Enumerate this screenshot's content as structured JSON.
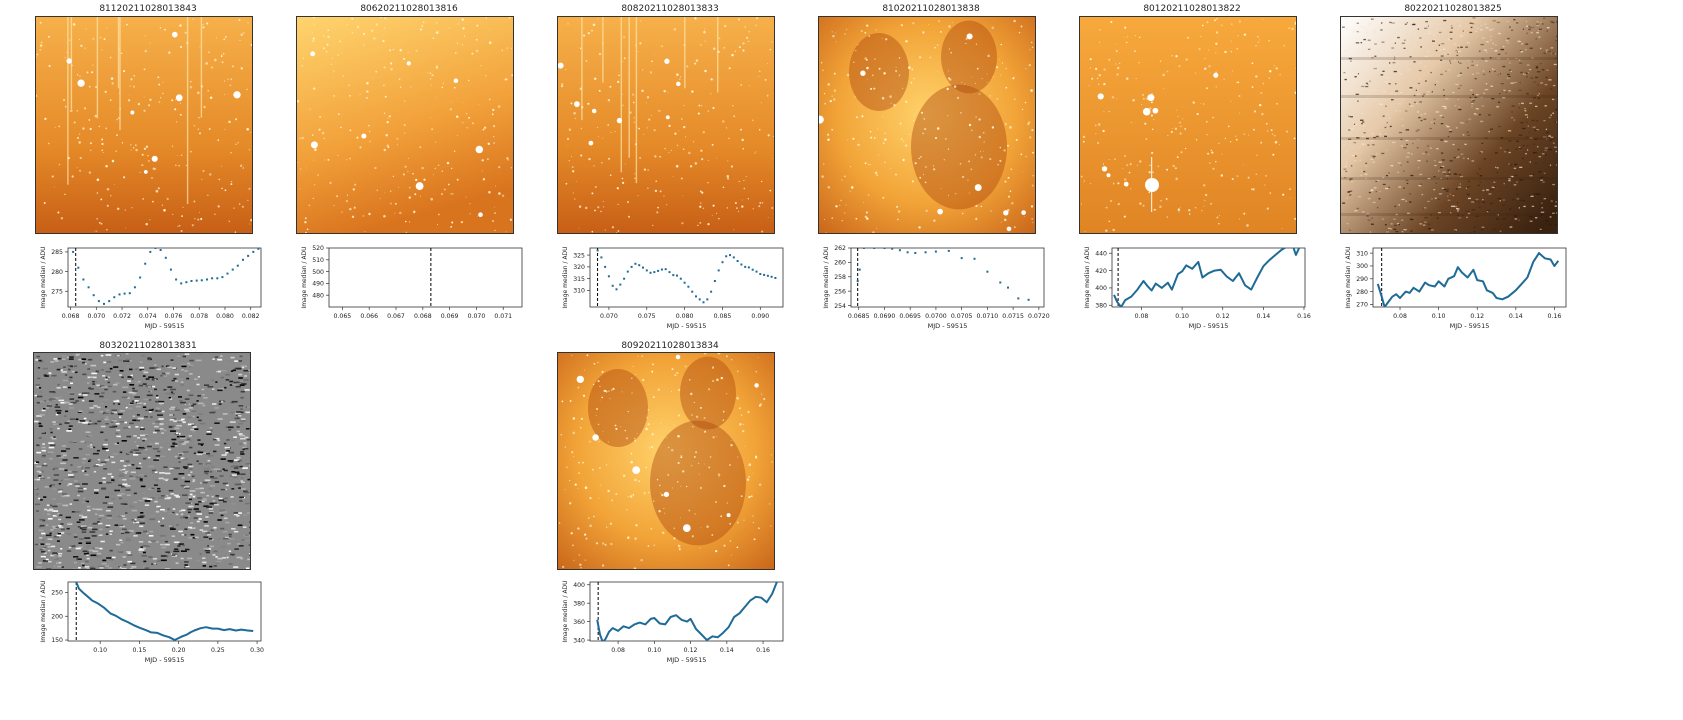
{
  "panels": [
    {
      "id": "8112",
      "title": "81120211028013843",
      "image_style": "orange-streaks",
      "chart_data": {
        "type": "line",
        "mode": "points",
        "xlabel": "MJD - 59515",
        "ylabel": "Image median / ADU",
        "xlim": [
          0.0678,
          0.0828
        ],
        "ylim": [
          271,
          286
        ],
        "xticks": [
          0.068,
          0.07,
          0.072,
          0.074,
          0.076,
          0.078,
          0.08,
          0.082
        ],
        "xtick_labels": [
          "0.068",
          "0.070",
          "0.072",
          "0.074",
          "0.076",
          "0.078",
          "0.080",
          "0.082"
        ],
        "yticks": [
          275,
          280,
          285
        ],
        "ytick_labels": [
          "275",
          "280",
          "285"
        ],
        "marker_x": 0.0684,
        "x": [
          0.0682,
          0.0686,
          0.069,
          0.0694,
          0.0698,
          0.0702,
          0.0706,
          0.071,
          0.0714,
          0.0718,
          0.0722,
          0.0726,
          0.073,
          0.0734,
          0.0738,
          0.0742,
          0.0746,
          0.075,
          0.0754,
          0.0758,
          0.0762,
          0.0766,
          0.077,
          0.0774,
          0.0778,
          0.0782,
          0.0786,
          0.079,
          0.0794,
          0.0798,
          0.0802,
          0.0806,
          0.081,
          0.0814,
          0.0818,
          0.0822,
          0.0826
        ],
        "y": [
          285,
          281,
          278,
          276,
          274,
          272.5,
          271.8,
          272.5,
          273.5,
          274.2,
          274.4,
          274.5,
          276,
          278.5,
          282,
          285,
          286,
          285.5,
          283.5,
          280.5,
          278,
          277,
          277.3,
          277.6,
          277.7,
          277.8,
          278,
          278.3,
          278.3,
          278.6,
          279.5,
          280.5,
          281.5,
          283,
          284,
          285,
          285.8
        ]
      }
    },
    {
      "id": "8062",
      "title": "80620211028013816",
      "image_style": "orange-smooth",
      "chart_data": {
        "type": "line",
        "mode": "points",
        "xlabel": "",
        "ylabel": "Image median / ADU",
        "xlim": [
          0.0645,
          0.0717
        ],
        "ylim": [
          470,
          520
        ],
        "xticks": [
          0.065,
          0.066,
          0.067,
          0.068,
          0.069,
          0.07,
          0.071
        ],
        "xtick_labels": [
          "0.065",
          "0.066",
          "0.067",
          "0.068",
          "0.069",
          "0.070",
          "0.071"
        ],
        "yticks": [
          480,
          490,
          500,
          510,
          520
        ],
        "ytick_labels": [
          "480",
          "490",
          "500",
          "510",
          "520"
        ],
        "marker_x": 0.0683,
        "x": [],
        "y": []
      }
    },
    {
      "id": "8082",
      "title": "80820211028013833",
      "image_style": "orange-streaks",
      "chart_data": {
        "type": "line",
        "mode": "points",
        "xlabel": "MJD - 59515",
        "ylabel": "Image median / ADU",
        "xlim": [
          0.0675,
          0.093
        ],
        "ylim": [
          303,
          328
        ],
        "xticks": [
          0.07,
          0.075,
          0.08,
          0.085,
          0.09
        ],
        "xtick_labels": [
          "0.070",
          "0.075",
          "0.080",
          "0.085",
          "0.090"
        ],
        "yticks": [
          310,
          315,
          320,
          325
        ],
        "ytick_labels": [
          "310",
          "315",
          "320",
          "325"
        ],
        "marker_x": 0.0685,
        "x": [
          0.0685,
          0.069,
          0.0695,
          0.07,
          0.0705,
          0.071,
          0.0715,
          0.072,
          0.0725,
          0.073,
          0.0735,
          0.074,
          0.0745,
          0.075,
          0.0755,
          0.076,
          0.0765,
          0.077,
          0.0775,
          0.078,
          0.0785,
          0.079,
          0.0795,
          0.08,
          0.0805,
          0.081,
          0.0815,
          0.082,
          0.0825,
          0.083,
          0.0835,
          0.084,
          0.0845,
          0.085,
          0.0855,
          0.086,
          0.0865,
          0.087,
          0.0875,
          0.088,
          0.0885,
          0.089,
          0.0895,
          0.09,
          0.0905,
          0.091,
          0.0915,
          0.092
        ],
        "y": [
          327,
          324,
          320,
          316,
          312,
          310.5,
          312.5,
          315,
          318,
          320,
          321.3,
          320.7,
          319.7,
          318.5,
          317.5,
          317.8,
          318.3,
          318.9,
          319,
          317.8,
          316.5,
          316.3,
          315,
          313.3,
          311.6,
          309.5,
          307.5,
          306.2,
          305,
          306.2,
          309.5,
          314,
          318.5,
          322,
          324.5,
          325,
          324,
          322.5,
          321,
          320,
          319.8,
          318.8,
          318,
          317,
          316.6,
          316.2,
          315.8,
          315.3
        ]
      }
    },
    {
      "id": "8102",
      "title": "81020211028013838",
      "image_style": "orange-nebula",
      "chart_data": {
        "type": "line",
        "mode": "points",
        "xlabel": "MJD - 59515",
        "ylabel": "Image median / ADU",
        "xlim": [
          0.06835,
          0.0721
        ],
        "ylim": [
          253.8,
          262
        ],
        "xticks": [
          0.0685,
          0.069,
          0.0695,
          0.07,
          0.0705,
          0.071,
          0.0715,
          0.072
        ],
        "xtick_labels": [
          "0.0685",
          "0.0690",
          "0.0695",
          "0.0700",
          "0.0705",
          "0.0710",
          "0.0715",
          "0.0720"
        ],
        "yticks": [
          254,
          256,
          258,
          260,
          262
        ],
        "ytick_labels": [
          "254",
          "256",
          "258",
          "260",
          "262"
        ],
        "marker_x": 0.06848,
        "x": [
          0.06848,
          0.06852,
          0.0686,
          0.0688,
          0.069,
          0.06915,
          0.0693,
          0.06945,
          0.0696,
          0.0698,
          0.07,
          0.07025,
          0.0705,
          0.07075,
          0.071,
          0.07125,
          0.0714,
          0.0716,
          0.0718
        ],
        "y": [
          257.4,
          259,
          262,
          262,
          262,
          261.9,
          261.7,
          261.4,
          261.3,
          261.4,
          261.5,
          261.6,
          260.6,
          260.5,
          258.7,
          257.2,
          256.5,
          255,
          254.8
        ]
      }
    },
    {
      "id": "8012",
      "title": "80120211028013822",
      "image_style": "orange-flat",
      "chart_data": {
        "type": "line",
        "mode": "line",
        "xlabel": "MJD - 59515",
        "ylabel": "Image median / ADU",
        "xlim": [
          0.0655,
          0.1605
        ],
        "ylim": [
          378,
          446
        ],
        "xticks": [
          0.08,
          0.1,
          0.12,
          0.14,
          0.16
        ],
        "xtick_labels": [
          "0.08",
          "0.10",
          "0.12",
          "0.14",
          "0.16"
        ],
        "yticks": [
          380,
          400,
          420,
          440
        ],
        "ytick_labels": [
          "380",
          "400",
          "420",
          "440"
        ],
        "marker_x": 0.0685,
        "x": [
          0.0665,
          0.068,
          0.07,
          0.072,
          0.075,
          0.078,
          0.081,
          0.083,
          0.085,
          0.087,
          0.09,
          0.093,
          0.095,
          0.098,
          0.1,
          0.102,
          0.105,
          0.108,
          0.11,
          0.113,
          0.116,
          0.119,
          0.122,
          0.125,
          0.128,
          0.131,
          0.134,
          0.137,
          0.14,
          0.143,
          0.146,
          0.149,
          0.152,
          0.154,
          0.156,
          0.158
        ],
        "y": [
          392,
          384,
          378,
          386,
          390,
          398,
          408,
          402,
          397,
          405,
          400,
          406,
          398,
          416,
          419,
          426,
          422,
          430,
          412,
          417,
          420,
          421,
          413,
          408,
          417,
          403,
          398,
          412,
          425,
          432,
          438,
          444,
          448,
          452,
          438,
          448
        ]
      }
    },
    {
      "id": "8022",
      "title": "80220211028013825",
      "image_style": "sepia-gradient",
      "chart_data": {
        "type": "line",
        "mode": "line",
        "xlabel": "MJD - 59515",
        "ylabel": "Image median / ADU",
        "xlim": [
          0.066,
          0.166
        ],
        "ylim": [
          268,
          314
        ],
        "xticks": [
          0.08,
          0.1,
          0.12,
          0.14,
          0.16
        ],
        "xtick_labels": [
          "0.08",
          "0.10",
          "0.12",
          "0.14",
          "0.16"
        ],
        "yticks": [
          270,
          280,
          290,
          300,
          310
        ],
        "ytick_labels": [
          "270",
          "280",
          "290",
          "300",
          "310"
        ],
        "marker_x": 0.0705,
        "x": [
          0.0685,
          0.0695,
          0.0705,
          0.072,
          0.074,
          0.076,
          0.078,
          0.08,
          0.083,
          0.085,
          0.087,
          0.09,
          0.093,
          0.095,
          0.098,
          0.1,
          0.103,
          0.105,
          0.108,
          0.11,
          0.112,
          0.115,
          0.118,
          0.12,
          0.123,
          0.125,
          0.128,
          0.13,
          0.133,
          0.136,
          0.14,
          0.143,
          0.146,
          0.149,
          0.152,
          0.155,
          0.158,
          0.16,
          0.162
        ],
        "y": [
          286,
          281,
          276,
          268,
          272,
          276,
          278,
          275,
          280,
          279,
          283,
          280,
          287,
          285,
          284,
          288,
          284,
          290,
          292,
          299,
          295,
          291,
          297,
          289,
          288,
          281,
          279,
          275,
          274,
          276,
          281,
          286,
          291,
          303,
          310,
          306,
          305,
          300,
          304
        ]
      }
    },
    {
      "id": "8032",
      "title": "80320211028013831",
      "image_style": "gray-noise",
      "chart_data": {
        "type": "line",
        "mode": "line",
        "xlabel": "MJD - 59515",
        "ylabel": "Image median / ADU",
        "xlim": [
          0.059,
          0.305
        ],
        "ylim": [
          148,
          272
        ],
        "xticks": [
          0.1,
          0.15,
          0.2,
          0.25,
          0.3
        ],
        "xtick_labels": [
          "0.10",
          "0.15",
          "0.20",
          "0.25",
          "0.30"
        ],
        "yticks": [
          150,
          200,
          250
        ],
        "ytick_labels": [
          "150",
          "200",
          "250"
        ],
        "marker_x": 0.0695,
        "x": [
          0.0695,
          0.073,
          0.078,
          0.083,
          0.09,
          0.097,
          0.105,
          0.113,
          0.12,
          0.128,
          0.135,
          0.143,
          0.15,
          0.158,
          0.165,
          0.173,
          0.18,
          0.188,
          0.195,
          0.2,
          0.205,
          0.21,
          0.215,
          0.22,
          0.228,
          0.235,
          0.243,
          0.25,
          0.258,
          0.265,
          0.273,
          0.28,
          0.288,
          0.295
        ],
        "y": [
          272,
          258,
          250,
          243,
          233,
          227,
          218,
          206,
          201,
          193,
          188,
          181,
          176,
          171,
          166,
          165,
          160,
          156,
          150,
          154,
          158,
          161,
          166,
          170,
          175,
          177,
          174,
          174,
          171,
          173,
          170,
          172,
          170,
          169
        ]
      }
    },
    {
      "id": "8092",
      "title": "80920211028013834",
      "image_style": "orange-nebula",
      "chart_data": {
        "type": "line",
        "mode": "line",
        "xlabel": "MJD - 59515",
        "ylabel": "Image median / ADU",
        "xlim": [
          0.0645,
          0.171
        ],
        "ylim": [
          339,
          403
        ],
        "xticks": [
          0.08,
          0.1,
          0.12,
          0.14,
          0.16
        ],
        "xtick_labels": [
          "0.08",
          "0.10",
          "0.12",
          "0.14",
          "0.16"
        ],
        "yticks": [
          340,
          360,
          380,
          400
        ],
        "ytick_labels": [
          "340",
          "360",
          "380",
          "400"
        ],
        "marker_x": 0.069,
        "x": [
          0.0685,
          0.07,
          0.0715,
          0.073,
          0.075,
          0.077,
          0.08,
          0.083,
          0.086,
          0.089,
          0.092,
          0.095,
          0.098,
          0.1,
          0.103,
          0.106,
          0.109,
          0.112,
          0.115,
          0.118,
          0.12,
          0.123,
          0.126,
          0.129,
          0.132,
          0.135,
          0.138,
          0.141,
          0.144,
          0.147,
          0.15,
          0.153,
          0.156,
          0.159,
          0.162,
          0.165,
          0.168
        ],
        "y": [
          362,
          346,
          338,
          341,
          349,
          353,
          350,
          355,
          353,
          357,
          359,
          357,
          363,
          364,
          358,
          357,
          365,
          367,
          362,
          360,
          363,
          352,
          346,
          340,
          344,
          343,
          348,
          354,
          365,
          369,
          376,
          383,
          387,
          386,
          381,
          390,
          405
        ]
      }
    }
  ],
  "colors": {
    "series": "#1f6b97",
    "axis": "#333333",
    "marker_line": "#000000",
    "title_text": "#222222"
  }
}
